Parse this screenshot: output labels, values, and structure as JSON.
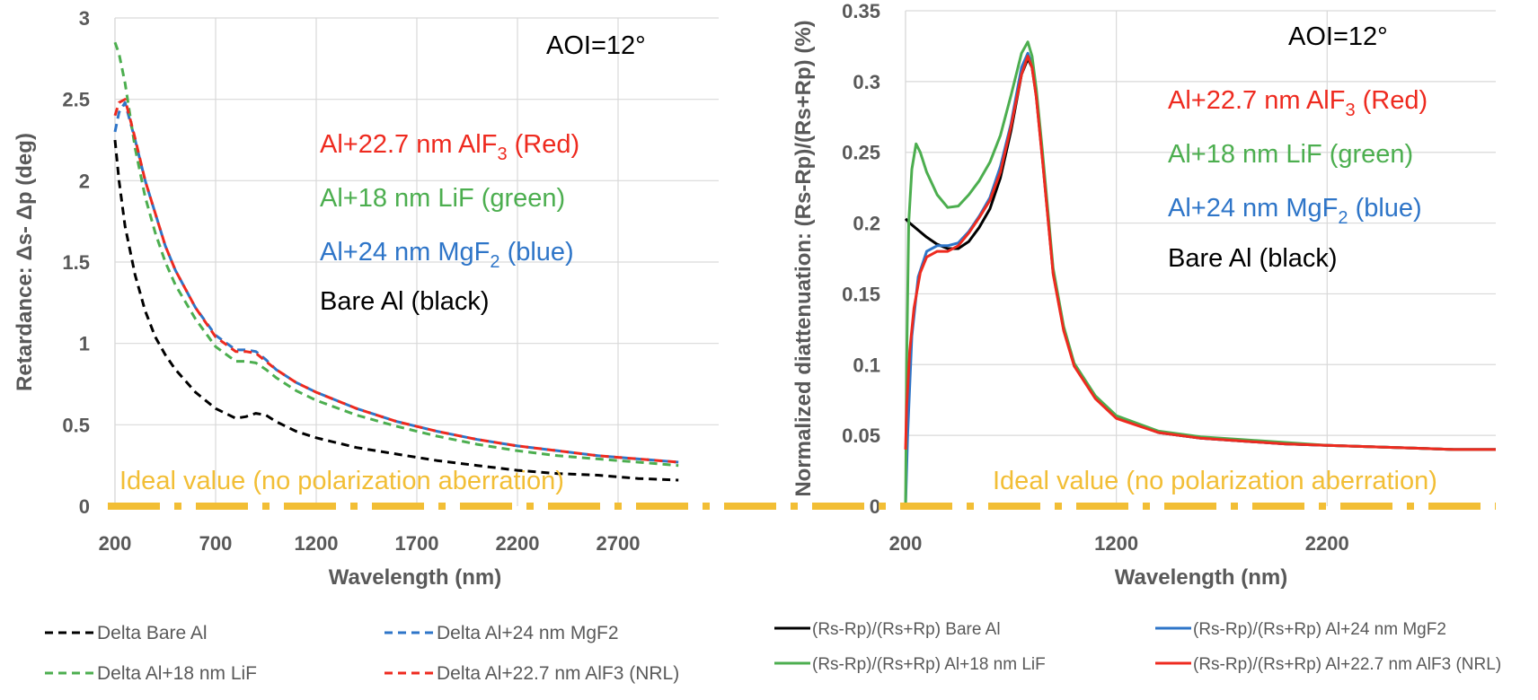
{
  "colors": {
    "black": "#000000",
    "blue": "#2e75c8",
    "green": "#4cae4f",
    "red": "#ee2a1f",
    "gold": "#f2be35",
    "grid": "#d9d9d9",
    "axisText": "#595959"
  },
  "chart_data": [
    {
      "type": "line",
      "title": "",
      "xlabel": "Wavelength (nm)",
      "ylabel": "Retardance: Δs- Δp (deg)",
      "xlim": [
        200,
        3200
      ],
      "ylim": [
        0,
        3
      ],
      "xticks": [
        "200",
        "700",
        "1200",
        "1700",
        "2200",
        "2700"
      ],
      "yticks": [
        "0",
        "0.5",
        "1",
        "1.5",
        "2",
        "2.5",
        "3"
      ],
      "annotations": {
        "aoi": "AOI=12°",
        "red": "Al+22.7 nm AlF",
        "red_sub": "3",
        "red_tail": " (Red)",
        "green": "Al+18 nm LiF  (green)",
        "blue": "Al+24 nm MgF",
        "blue_sub": "2",
        "blue_tail": "  (blue)",
        "black": "Bare Al (black)",
        "ideal": "Ideal value (no polarization aberration)"
      },
      "series": [
        {
          "name": "Delta Bare Al",
          "color": "black",
          "dash": true,
          "x": [
            200,
            220,
            250,
            300,
            350,
            400,
            450,
            500,
            600,
            700,
            800,
            850,
            900,
            950,
            1000,
            1100,
            1200,
            1400,
            1600,
            1800,
            2000,
            2200,
            2400,
            2600,
            2800,
            3000
          ],
          "y": [
            2.25,
            2.0,
            1.72,
            1.42,
            1.2,
            1.04,
            0.93,
            0.84,
            0.7,
            0.6,
            0.54,
            0.55,
            0.57,
            0.56,
            0.52,
            0.46,
            0.42,
            0.36,
            0.32,
            0.28,
            0.25,
            0.22,
            0.2,
            0.19,
            0.17,
            0.16
          ]
        },
        {
          "name": "Delta Al+24 nm MgF2",
          "color": "blue",
          "dash": true,
          "x": [
            200,
            220,
            250,
            300,
            350,
            400,
            450,
            500,
            600,
            700,
            800,
            850,
            900,
            950,
            1000,
            1100,
            1200,
            1400,
            1600,
            1800,
            2000,
            2200,
            2400,
            2600,
            2800,
            3000
          ],
          "y": [
            2.3,
            2.42,
            2.48,
            2.25,
            2.0,
            1.8,
            1.6,
            1.45,
            1.22,
            1.05,
            0.96,
            0.96,
            0.95,
            0.9,
            0.84,
            0.76,
            0.7,
            0.6,
            0.52,
            0.46,
            0.41,
            0.37,
            0.34,
            0.31,
            0.29,
            0.27
          ]
        },
        {
          "name": "Delta Al+18 nm LiF",
          "color": "green",
          "dash": true,
          "x": [
            200,
            220,
            250,
            300,
            350,
            400,
            450,
            500,
            600,
            700,
            800,
            850,
            900,
            950,
            1000,
            1100,
            1200,
            1400,
            1600,
            1800,
            2000,
            2200,
            2400,
            2600,
            2800,
            3000
          ],
          "y": [
            2.85,
            2.78,
            2.6,
            2.2,
            1.9,
            1.68,
            1.5,
            1.36,
            1.15,
            0.98,
            0.89,
            0.89,
            0.88,
            0.84,
            0.79,
            0.71,
            0.65,
            0.56,
            0.49,
            0.43,
            0.38,
            0.34,
            0.31,
            0.29,
            0.27,
            0.25
          ]
        },
        {
          "name": "Delta Al+22.7 nm AlF3 (NRL)",
          "color": "red",
          "dash": true,
          "x": [
            200,
            220,
            250,
            300,
            350,
            400,
            450,
            500,
            600,
            700,
            800,
            850,
            900,
            950,
            1000,
            1100,
            1200,
            1400,
            1600,
            1800,
            2000,
            2200,
            2400,
            2600,
            2800,
            3000
          ],
          "y": [
            2.4,
            2.48,
            2.5,
            2.26,
            2.0,
            1.8,
            1.6,
            1.45,
            1.22,
            1.04,
            0.95,
            0.95,
            0.94,
            0.89,
            0.84,
            0.76,
            0.7,
            0.6,
            0.52,
            0.46,
            0.41,
            0.37,
            0.34,
            0.31,
            0.29,
            0.27
          ]
        }
      ],
      "legend": [
        {
          "label": "Delta Bare Al",
          "color": "black"
        },
        {
          "label": "Delta Al+24 nm MgF2",
          "color": "blue"
        },
        {
          "label": "Delta Al+18 nm LiF",
          "color": "green"
        },
        {
          "label": "Delta Al+22.7 nm AlF3 (NRL)",
          "color": "red"
        }
      ]
    },
    {
      "type": "line",
      "title": "",
      "xlabel": "Wavelength (nm)",
      "ylabel": "Normalized diattenuation: (Rs-Rp)/(Rs+Rp) (%)",
      "xlim": [
        200,
        3000
      ],
      "ylim": [
        0,
        0.35
      ],
      "xticks": [
        "200",
        "1200",
        "2200"
      ],
      "yticks": [
        "0",
        "0.05",
        "0.1",
        "0.15",
        "0.2",
        "0.25",
        "0.3",
        "0.35"
      ],
      "annotations": {
        "aoi": "AOI=12°",
        "red": "Al+22.7 nm AlF",
        "red_sub": "3",
        "red_tail": " (Red)",
        "green": "Al+18 nm LiF  (green)",
        "blue": "Al+24 nm MgF",
        "blue_sub": "2",
        "blue_tail": "  (blue)",
        "black": "Bare Al (black)",
        "ideal": "Ideal value (no polarization aberration)"
      },
      "series": [
        {
          "name": "(Rs-Rp)/(Rs+Rp) Bare Al",
          "color": "black",
          "dash": false,
          "x": [
            200,
            220,
            260,
            300,
            350,
            400,
            450,
            500,
            550,
            600,
            650,
            700,
            750,
            780,
            800,
            820,
            850,
            900,
            950,
            1000,
            1100,
            1200,
            1400,
            1600,
            1800,
            2000,
            2200,
            2400,
            2600,
            2800,
            3000
          ],
          "y": [
            0.203,
            0.2,
            0.195,
            0.19,
            0.185,
            0.182,
            0.182,
            0.187,
            0.197,
            0.21,
            0.232,
            0.265,
            0.305,
            0.316,
            0.31,
            0.29,
            0.245,
            0.165,
            0.125,
            0.1,
            0.077,
            0.063,
            0.052,
            0.048,
            0.046,
            0.044,
            0.043,
            0.042,
            0.041,
            0.04,
            0.04
          ]
        },
        {
          "name": "(Rs-Rp)/(Rs+Rp) Al+24 nm MgF2",
          "color": "blue",
          "dash": false,
          "x": [
            200,
            210,
            230,
            260,
            300,
            350,
            400,
            450,
            500,
            550,
            600,
            650,
            700,
            750,
            780,
            800,
            820,
            850,
            900,
            950,
            1000,
            1100,
            1200,
            1400,
            1600,
            1800,
            2000,
            2200,
            2400,
            2600,
            2800,
            3000
          ],
          "y": [
            0.0,
            0.05,
            0.12,
            0.162,
            0.18,
            0.184,
            0.184,
            0.186,
            0.194,
            0.205,
            0.218,
            0.24,
            0.27,
            0.31,
            0.32,
            0.312,
            0.29,
            0.246,
            0.166,
            0.125,
            0.1,
            0.077,
            0.063,
            0.052,
            0.048,
            0.046,
            0.044,
            0.043,
            0.042,
            0.041,
            0.04,
            0.04
          ]
        },
        {
          "name": "(Rs-Rp)/(Rs+Rp) Al+18 nm LiF",
          "color": "green",
          "dash": false,
          "x": [
            200,
            205,
            215,
            230,
            250,
            270,
            300,
            350,
            400,
            450,
            500,
            550,
            600,
            650,
            700,
            750,
            780,
            800,
            820,
            850,
            900,
            950,
            1000,
            1100,
            1200,
            1400,
            1600,
            1800,
            2000,
            2200,
            2400,
            2600,
            2800,
            3000
          ],
          "y": [
            0.0,
            0.1,
            0.2,
            0.238,
            0.256,
            0.25,
            0.236,
            0.22,
            0.211,
            0.212,
            0.22,
            0.23,
            0.243,
            0.262,
            0.29,
            0.32,
            0.328,
            0.318,
            0.295,
            0.25,
            0.168,
            0.127,
            0.101,
            0.078,
            0.064,
            0.053,
            0.049,
            0.047,
            0.045,
            0.043,
            0.042,
            0.041,
            0.04,
            0.04
          ]
        },
        {
          "name": "(Rs-Rp)/(Rs+Rp) Al+22.7 nm AlF3 (NRL)",
          "color": "red",
          "dash": false,
          "x": [
            200,
            205,
            220,
            240,
            270,
            300,
            350,
            400,
            450,
            500,
            550,
            600,
            650,
            700,
            750,
            780,
            800,
            820,
            850,
            900,
            950,
            1000,
            1100,
            1200,
            1400,
            1600,
            1800,
            2000,
            2200,
            2400,
            2600,
            2800,
            3000
          ],
          "y": [
            0.04,
            0.07,
            0.11,
            0.14,
            0.165,
            0.176,
            0.18,
            0.18,
            0.184,
            0.193,
            0.204,
            0.216,
            0.236,
            0.268,
            0.305,
            0.318,
            0.31,
            0.289,
            0.244,
            0.164,
            0.124,
            0.099,
            0.076,
            0.062,
            0.052,
            0.048,
            0.046,
            0.044,
            0.043,
            0.042,
            0.041,
            0.04,
            0.04
          ]
        }
      ],
      "legend": [
        {
          "label": "(Rs-Rp)/(Rs+Rp) Bare Al",
          "color": "black"
        },
        {
          "label": "(Rs-Rp)/(Rs+Rp) Al+24 nm MgF2",
          "color": "blue"
        },
        {
          "label": "(Rs-Rp)/(Rs+Rp) Al+18 nm LiF",
          "color": "green"
        },
        {
          "label": "(Rs-Rp)/(Rs+Rp) Al+22.7 nm AlF3 (NRL)",
          "color": "red"
        }
      ]
    }
  ]
}
